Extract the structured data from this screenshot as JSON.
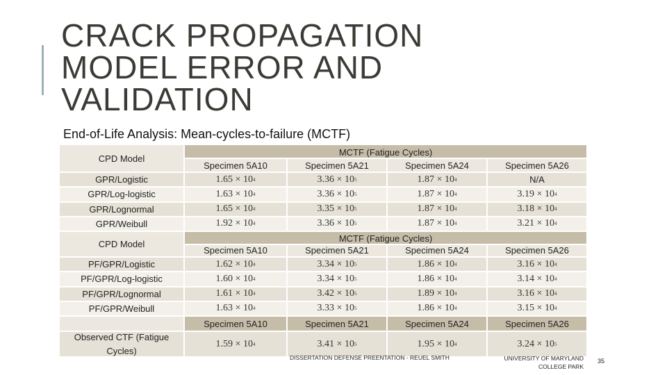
{
  "title": [
    "CRACK PROPAGATION",
    "MODEL ERROR AND",
    "VALIDATION"
  ],
  "subtitle": "End-of-Life Analysis: Mean-cycles-to-failure (MCTF)",
  "sections": [
    {
      "corner": "CPD Model",
      "group": "MCTF (Fatigue Cycles)",
      "columns": [
        "Specimen 5A10",
        "Specimen 5A21",
        "Specimen 5A24",
        "Specimen 5A26"
      ],
      "rows": [
        {
          "label": "GPR/Logistic",
          "cells": [
            [
              "1.65 × 10",
              "4"
            ],
            [
              "3.36 × 10",
              "5"
            ],
            [
              "1.87 × 10",
              "4"
            ],
            "N/A"
          ]
        },
        {
          "label": "GPR/Log-logistic",
          "cells": [
            [
              "1.63 × 10",
              "4"
            ],
            [
              "3.36 × 10",
              "5"
            ],
            [
              "1.87 × 10",
              "4"
            ],
            [
              "3.19 × 10",
              "4"
            ]
          ]
        },
        {
          "label": "GPR/Lognormal",
          "cells": [
            [
              "1.65 × 10",
              "4"
            ],
            [
              "3.35 × 10",
              "5"
            ],
            [
              "1.87 × 10",
              "4"
            ],
            [
              "3.18 × 10",
              "4"
            ]
          ]
        },
        {
          "label": "GPR/Weibull",
          "cells": [
            [
              "1.92 × 10",
              "4"
            ],
            [
              "3.36 × 10",
              "5"
            ],
            [
              "1.87 × 10",
              "4"
            ],
            [
              "3.21 × 10",
              "4"
            ]
          ]
        }
      ]
    },
    {
      "corner": "CPD Model",
      "group": "MCTF (Fatigue Cycles)",
      "columns": [
        "Specimen 5A10",
        "Specimen 5A21",
        "Specimen 5A24",
        "Specimen 5A26"
      ],
      "rows": [
        {
          "label": "PF/GPR/Logistic",
          "cells": [
            [
              "1.62 × 10",
              "4"
            ],
            [
              "3.34 × 10",
              "5"
            ],
            [
              "1.86 × 10",
              "4"
            ],
            [
              "3.16 × 10",
              "4"
            ]
          ]
        },
        {
          "label": "PF/GPR/Log-logistic",
          "cells": [
            [
              "1.60 × 10",
              "4"
            ],
            [
              "3.34 × 10",
              "5"
            ],
            [
              "1.86 × 10",
              "4"
            ],
            [
              "3.14 × 10",
              "4"
            ]
          ]
        },
        {
          "label": "PF/GPR/Lognormal",
          "cells": [
            [
              "1.61 × 10",
              "4"
            ],
            [
              "3.42 × 10",
              "5"
            ],
            [
              "1.89 × 10",
              "4"
            ],
            [
              "3.16 × 10",
              "4"
            ]
          ]
        },
        {
          "label": "PF/GPR/Weibull",
          "cells": [
            [
              "1.63 × 10",
              "4"
            ],
            [
              "3.33 × 10",
              "5"
            ],
            [
              "1.86 × 10",
              "4"
            ],
            [
              "3.15 × 10",
              "4"
            ]
          ]
        }
      ]
    },
    {
      "columns": [
        "Specimen 5A10",
        "Specimen 5A21",
        "Specimen 5A24",
        "Specimen 5A26"
      ],
      "rows": [
        {
          "label": "Observed CTF (Fatigue Cycles)",
          "cells": [
            [
              "1.59 × 10",
              "4"
            ],
            [
              "3.41 × 10",
              "5"
            ],
            [
              "1.95 × 10",
              "4"
            ],
            [
              "3.24 × 10",
              "5"
            ]
          ]
        }
      ]
    }
  ],
  "footer": {
    "left": "DISSERTATION DEFENSE PREENTATION - REUEL SMITH",
    "right": [
      "UNIVERSITY OF MARYLAND",
      "COLLEGE PARK"
    ],
    "page": "35"
  }
}
